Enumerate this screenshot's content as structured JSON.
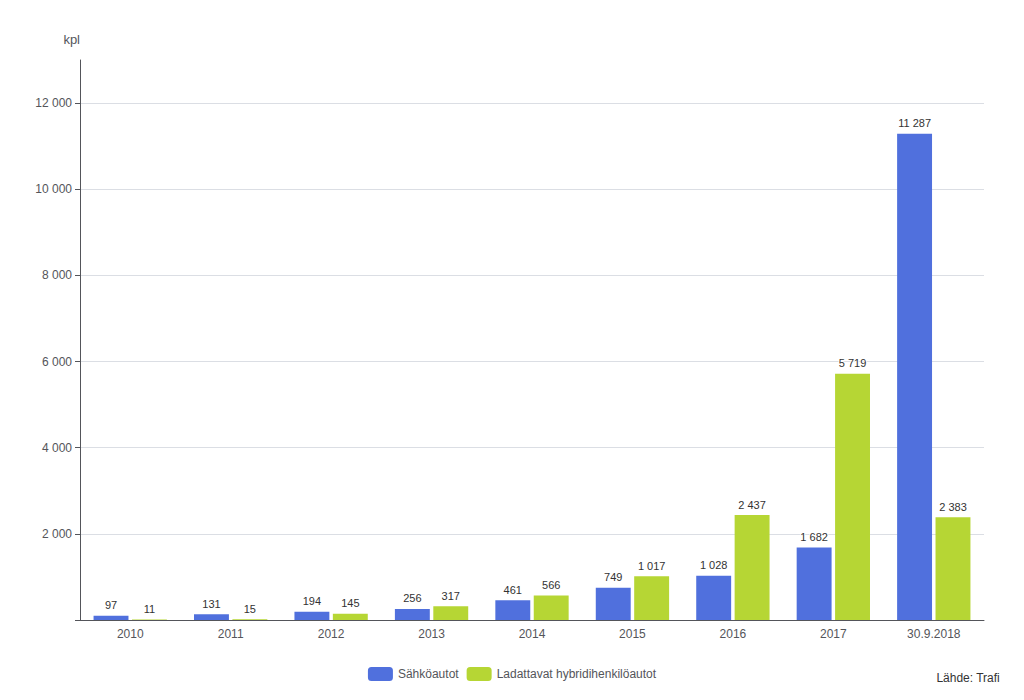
{
  "chart_data": {
    "type": "bar",
    "categories": [
      "2010",
      "2011",
      "2012",
      "2013",
      "2014",
      "2015",
      "2016",
      "2017",
      "30.9.2018"
    ],
    "series": [
      {
        "name": "Sähköautot",
        "values": [
          97,
          131,
          194,
          256,
          461,
          749,
          1028,
          1682,
          11287
        ],
        "value_labels": [
          "97",
          "131",
          "194",
          "256",
          "461",
          "749",
          "1 028",
          "1 682",
          "11 287"
        ]
      },
      {
        "name": "Ladattavat hybridihenkilöautot",
        "values": [
          11,
          15,
          145,
          317,
          566,
          1017,
          2437,
          5719,
          2383
        ],
        "value_labels": [
          "11",
          "15",
          "145",
          "317",
          "566",
          "1 017",
          "2 437",
          "5 719",
          "2 383"
        ]
      }
    ],
    "ylabel": "kpl",
    "ylim": [
      0,
      13000
    ],
    "yticks": [
      {
        "value": 0,
        "label": ""
      },
      {
        "value": 2000,
        "label": "2 000"
      },
      {
        "value": 4000,
        "label": "4 000"
      },
      {
        "value": 6000,
        "label": "6 000"
      },
      {
        "value": 8000,
        "label": "8 000"
      },
      {
        "value": 10000,
        "label": "10 000"
      },
      {
        "value": 12000,
        "label": "12 000"
      }
    ],
    "grid": true,
    "legend": "bottom",
    "data_labels": true,
    "annotations": [
      {
        "text": "Lähde: Trafi"
      }
    ]
  }
}
